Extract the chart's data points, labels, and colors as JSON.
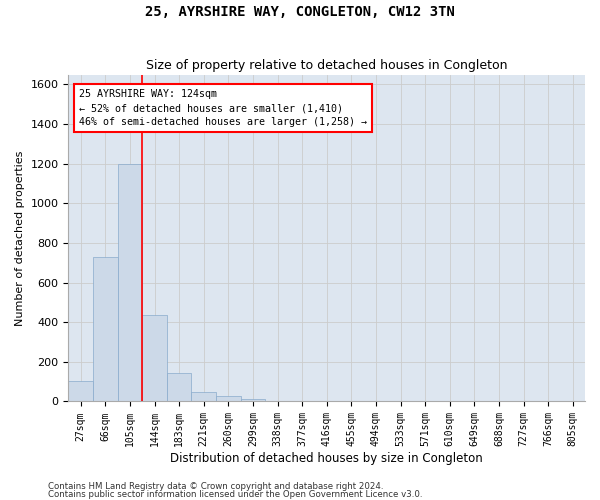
{
  "title": "25, AYRSHIRE WAY, CONGLETON, CW12 3TN",
  "subtitle": "Size of property relative to detached houses in Congleton",
  "xlabel_bottom": "Distribution of detached houses by size in Congleton",
  "ylabel": "Number of detached properties",
  "bar_color": "#ccd9e8",
  "bar_edge_color": "#88aacc",
  "categories": [
    "27sqm",
    "66sqm",
    "105sqm",
    "144sqm",
    "183sqm",
    "221sqm",
    "260sqm",
    "299sqm",
    "338sqm",
    "377sqm",
    "416sqm",
    "455sqm",
    "494sqm",
    "533sqm",
    "571sqm",
    "610sqm",
    "649sqm",
    "688sqm",
    "727sqm",
    "766sqm",
    "805sqm"
  ],
  "values": [
    105,
    730,
    1200,
    435,
    145,
    50,
    28,
    15,
    0,
    0,
    0,
    0,
    0,
    0,
    0,
    0,
    0,
    0,
    0,
    0,
    0
  ],
  "ylim": [
    0,
    1650
  ],
  "yticks": [
    0,
    200,
    400,
    600,
    800,
    1000,
    1200,
    1400,
    1600
  ],
  "vline_x_index": 2.5,
  "property_label": "25 AYRSHIRE WAY: 124sqm",
  "annotation_line1": "← 52% of detached houses are smaller (1,410)",
  "annotation_line2": "46% of semi-detached houses are larger (1,258) →",
  "footer1": "Contains HM Land Registry data © Crown copyright and database right 2024.",
  "footer2": "Contains public sector information licensed under the Open Government Licence v3.0.",
  "grid_color": "#cccccc",
  "background_color": "#dde6f0"
}
